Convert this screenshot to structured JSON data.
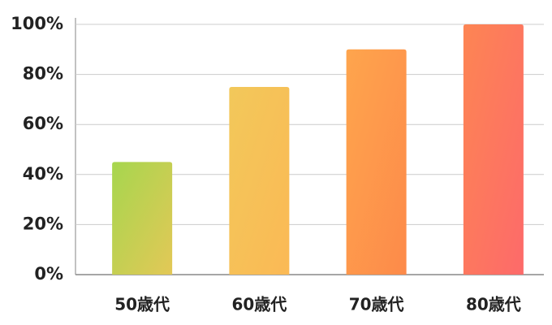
{
  "chart_data": {
    "type": "bar",
    "categories": [
      "50歳代",
      "60歳代",
      "70歳代",
      "80歳代"
    ],
    "values": [
      45,
      75,
      90,
      100
    ],
    "colors": [
      [
        "#a6d64e",
        "#e3c857"
      ],
      [
        "#f2c85a",
        "#fbb955"
      ],
      [
        "#fea54d",
        "#fd8a4a"
      ],
      [
        "#fd8553",
        "#fd6a6a"
      ]
    ],
    "ylim": [
      0,
      100
    ],
    "yticks": [
      {
        "value": 0,
        "label": "0%"
      },
      {
        "value": 20,
        "label": "20%"
      },
      {
        "value": 40,
        "label": "40%"
      },
      {
        "value": 60,
        "label": "60%"
      },
      {
        "value": 80,
        "label": "80%"
      },
      {
        "value": 100,
        "label": "100%"
      }
    ],
    "grid": true
  }
}
